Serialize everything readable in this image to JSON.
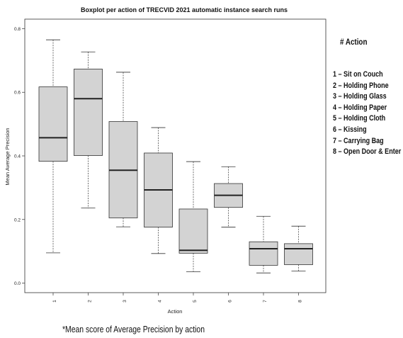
{
  "chart_data": {
    "type": "boxplot",
    "title": "Boxplot per action of TRECVID 2021 automatic instance search runs",
    "xlabel": "Action",
    "ylabel": "Mean Average Precision",
    "categories": [
      "1",
      "2",
      "3",
      "4",
      "5",
      "6",
      "7",
      "8"
    ],
    "yticks": [
      "0.0",
      "0.2",
      "0.4",
      "0.6",
      "0.8"
    ],
    "ylim": [
      -0.03,
      0.83
    ],
    "grid": false,
    "box_color": "#d3d3d3",
    "boxes": [
      {
        "category": "1",
        "min": 0.095,
        "q1": 0.383,
        "median": 0.457,
        "q3": 0.617,
        "max": 0.765
      },
      {
        "category": "2",
        "min": 0.236,
        "q1": 0.401,
        "median": 0.58,
        "q3": 0.673,
        "max": 0.727
      },
      {
        "category": "3",
        "min": 0.177,
        "q1": 0.205,
        "median": 0.355,
        "q3": 0.508,
        "max": 0.663
      },
      {
        "category": "4",
        "min": 0.093,
        "q1": 0.176,
        "median": 0.293,
        "q3": 0.409,
        "max": 0.489
      },
      {
        "category": "5",
        "min": 0.036,
        "q1": 0.094,
        "median": 0.103,
        "q3": 0.233,
        "max": 0.382
      },
      {
        "category": "6",
        "min": 0.176,
        "q1": 0.238,
        "median": 0.276,
        "q3": 0.313,
        "max": 0.366
      },
      {
        "category": "7",
        "min": 0.032,
        "q1": 0.056,
        "median": 0.108,
        "q3": 0.13,
        "max": 0.21
      },
      {
        "category": "8",
        "min": 0.038,
        "q1": 0.058,
        "median": 0.108,
        "q3": 0.124,
        "max": 0.179
      }
    ]
  },
  "legend": {
    "heading": "#   Action",
    "items": [
      "1 – Sit on Couch",
      "2 – Holding Phone",
      "3 – Holding Glass",
      "4 – Holding Paper",
      "5 – Holding Cloth",
      "6 – Kissing",
      "7 – Carrying Bag",
      "8 – Open Door & Enter"
    ]
  },
  "footnote": "*Mean score of Average Precision by action"
}
